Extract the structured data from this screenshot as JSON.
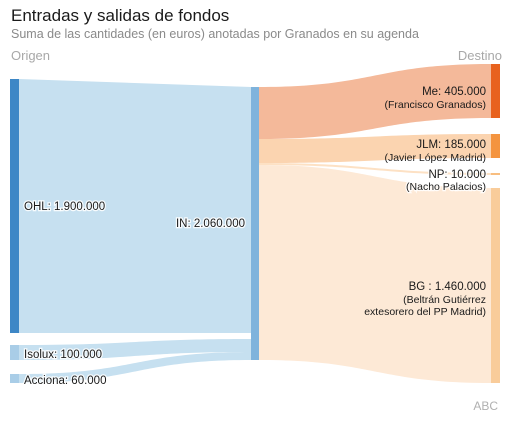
{
  "header": {
    "title": "Entradas y salidas de fondos",
    "subtitle": "Suma de las cantidades (en euros) anotadas por Granados en su agenda",
    "left_column": "Origen",
    "right_column": "Destino"
  },
  "credit": "ABC",
  "colors": {
    "source_node": "#3d87c6",
    "source_light_node": "#a9cde7",
    "middle_node": "#7fb3dc",
    "source_link": "#c6e0f0",
    "me_node": "#e8621e",
    "me_link": "#f4b99a",
    "jlm_node": "#f4943f",
    "jlm_link": "#fbd4b0",
    "np_node": "#f8be80",
    "bg_node": "#f9cc9a",
    "bg_link": "#fde9d6"
  },
  "sankey": {
    "sources": [
      {
        "id": "OHL",
        "label": "OHL: 1.900.000",
        "value": 1900000
      },
      {
        "id": "Isolux",
        "label": "Isolux: 100.000",
        "value": 100000
      },
      {
        "id": "Acciona",
        "label": "Acciona: 60.000",
        "value": 60000
      }
    ],
    "middle": {
      "id": "IN",
      "label": "IN: 2.060.000",
      "value": 2060000
    },
    "destinations": [
      {
        "id": "Me",
        "label": "Me: 405.000",
        "sublabel": [
          "(Francisco Granados)"
        ],
        "value": 405000
      },
      {
        "id": "JLM",
        "label": "JLM: 185.000",
        "sublabel": [
          "(Javier López Madrid)"
        ],
        "value": 185000
      },
      {
        "id": "NP",
        "label": "NP: 10.000",
        "sublabel": [
          "(Nacho Palacios)"
        ],
        "value": 10000
      },
      {
        "id": "BG",
        "label": "BG : 1.460.000",
        "sublabel": [
          "(Beltrán Gutiérrez",
          "extesorero del PP Madrid)"
        ],
        "value": 1460000
      }
    ]
  }
}
